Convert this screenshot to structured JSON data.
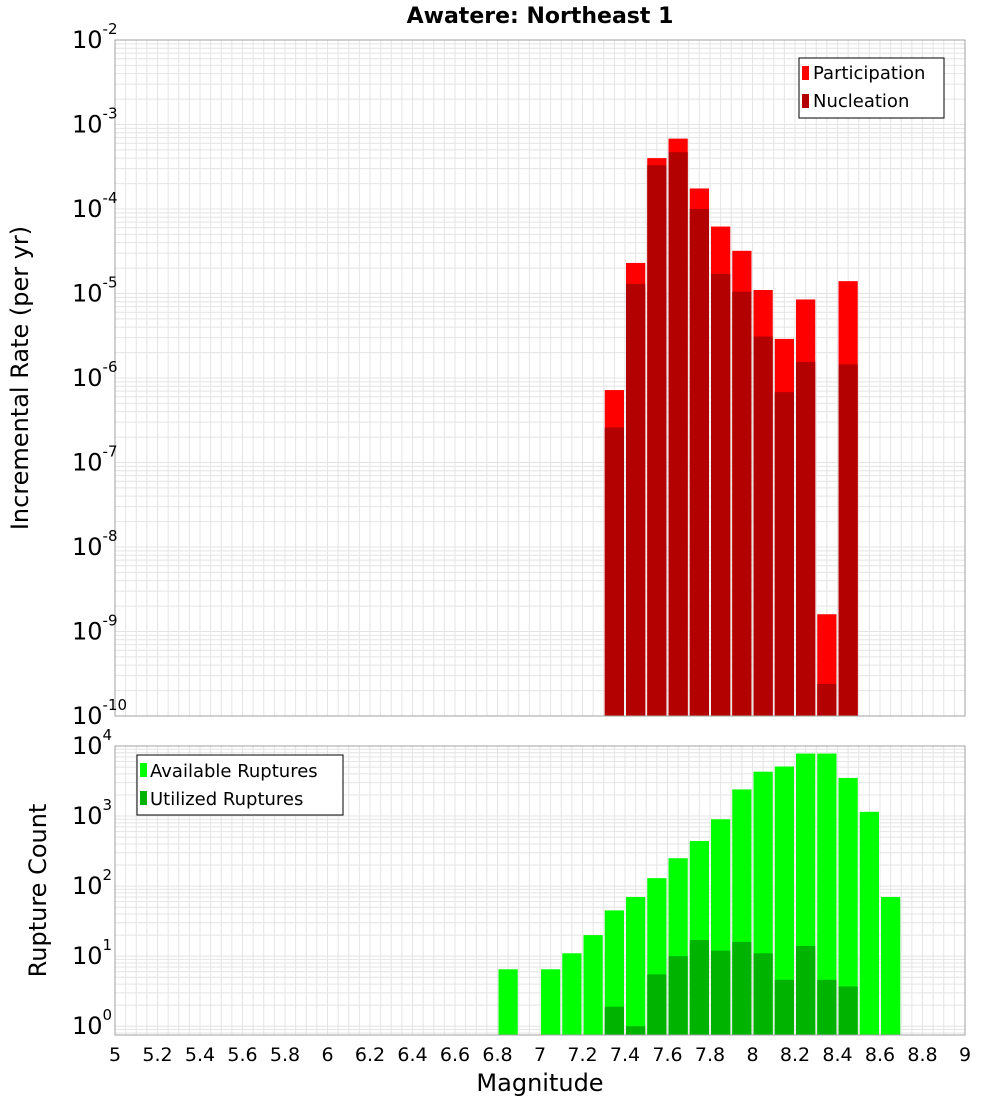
{
  "chart_data": {
    "title": "Awatere: Northeast 1",
    "xlabel": "Magnitude",
    "x_ticks": [
      "5",
      "5.2",
      "5.4",
      "5.6",
      "5.8",
      "6",
      "6.2",
      "6.4",
      "6.6",
      "6.8",
      "7",
      "7.2",
      "7.4",
      "7.6",
      "7.8",
      "8",
      "8.2",
      "8.4",
      "8.6",
      "8.8",
      "9"
    ],
    "xlim": [
      5,
      9
    ],
    "bin_width": 0.1,
    "colors": {
      "participation": "#ff0000",
      "nucleation": "#b30000",
      "available": "#00ff00",
      "utilized": "#00b300",
      "grid": "#e4e4e4",
      "frame": "#a0a0a0"
    },
    "panels": [
      {
        "type": "bar",
        "ylabel": "Incremental Rate (per yr)",
        "yscale": "log",
        "ylim": [
          1e-10,
          0.01
        ],
        "y_ticks": [
          {
            "base": "10",
            "exp": "-10"
          },
          {
            "base": "10",
            "exp": "-9"
          },
          {
            "base": "10",
            "exp": "-8"
          },
          {
            "base": "10",
            "exp": "-7"
          },
          {
            "base": "10",
            "exp": "-6"
          },
          {
            "base": "10",
            "exp": "-5"
          },
          {
            "base": "10",
            "exp": "-4"
          },
          {
            "base": "10",
            "exp": "-3"
          },
          {
            "base": "10",
            "exp": "-2"
          }
        ],
        "legend_position": "top-right",
        "x": [
          7.35,
          7.45,
          7.55,
          7.65,
          7.75,
          7.85,
          7.95,
          8.05,
          8.15,
          8.25,
          8.35,
          8.45
        ],
        "series": [
          {
            "name": "Participation",
            "color_key": "participation",
            "values": [
              7.2e-07,
              2.3e-05,
              0.0004,
              0.00068,
              0.000175,
              6.2e-05,
              3.2e-05,
              1.1e-05,
              2.9e-06,
              8.5e-06,
              1.6e-09,
              1.4e-05
            ]
          },
          {
            "name": "Nucleation",
            "color_key": "nucleation",
            "values": [
              2.6e-07,
              1.3e-05,
              0.00033,
              0.00047,
              0.0001,
              1.7e-05,
              1.05e-05,
              3.1e-06,
              6.8e-07,
              1.55e-06,
              2.4e-10,
              1.45e-06
            ]
          }
        ]
      },
      {
        "type": "bar",
        "ylabel": "Rupture Count",
        "yscale": "log",
        "ylim": [
          0.75,
          10000
        ],
        "y_ticks": [
          {
            "base": "10",
            "exp": "0"
          },
          {
            "base": "10",
            "exp": "1"
          },
          {
            "base": "10",
            "exp": "2"
          },
          {
            "base": "10",
            "exp": "3"
          },
          {
            "base": "10",
            "exp": "4"
          }
        ],
        "legend_position": "top-left",
        "x": [
          6.85,
          7.05,
          7.15,
          7.25,
          7.35,
          7.45,
          7.55,
          7.65,
          7.75,
          7.85,
          7.95,
          8.05,
          8.15,
          8.25,
          8.35,
          8.45,
          8.55,
          8.65
        ],
        "series": [
          {
            "name": "Available Ruptures",
            "color_key": "available",
            "values": [
              6.5,
              6.5,
              11,
              20,
              45,
              70,
              130,
              250,
              440,
              900,
              2400,
              4300,
              5100,
              7800,
              7800,
              3500,
              1150,
              70
            ]
          },
          {
            "name": "Utilized Ruptures",
            "color_key": "utilized",
            "values": [
              0,
              0,
              0,
              0,
              1.9,
              1.0,
              5.5,
              10,
              17,
              12,
              16,
              11,
              4.6,
              14,
              4.6,
              3.7,
              0,
              0
            ]
          }
        ]
      }
    ]
  }
}
